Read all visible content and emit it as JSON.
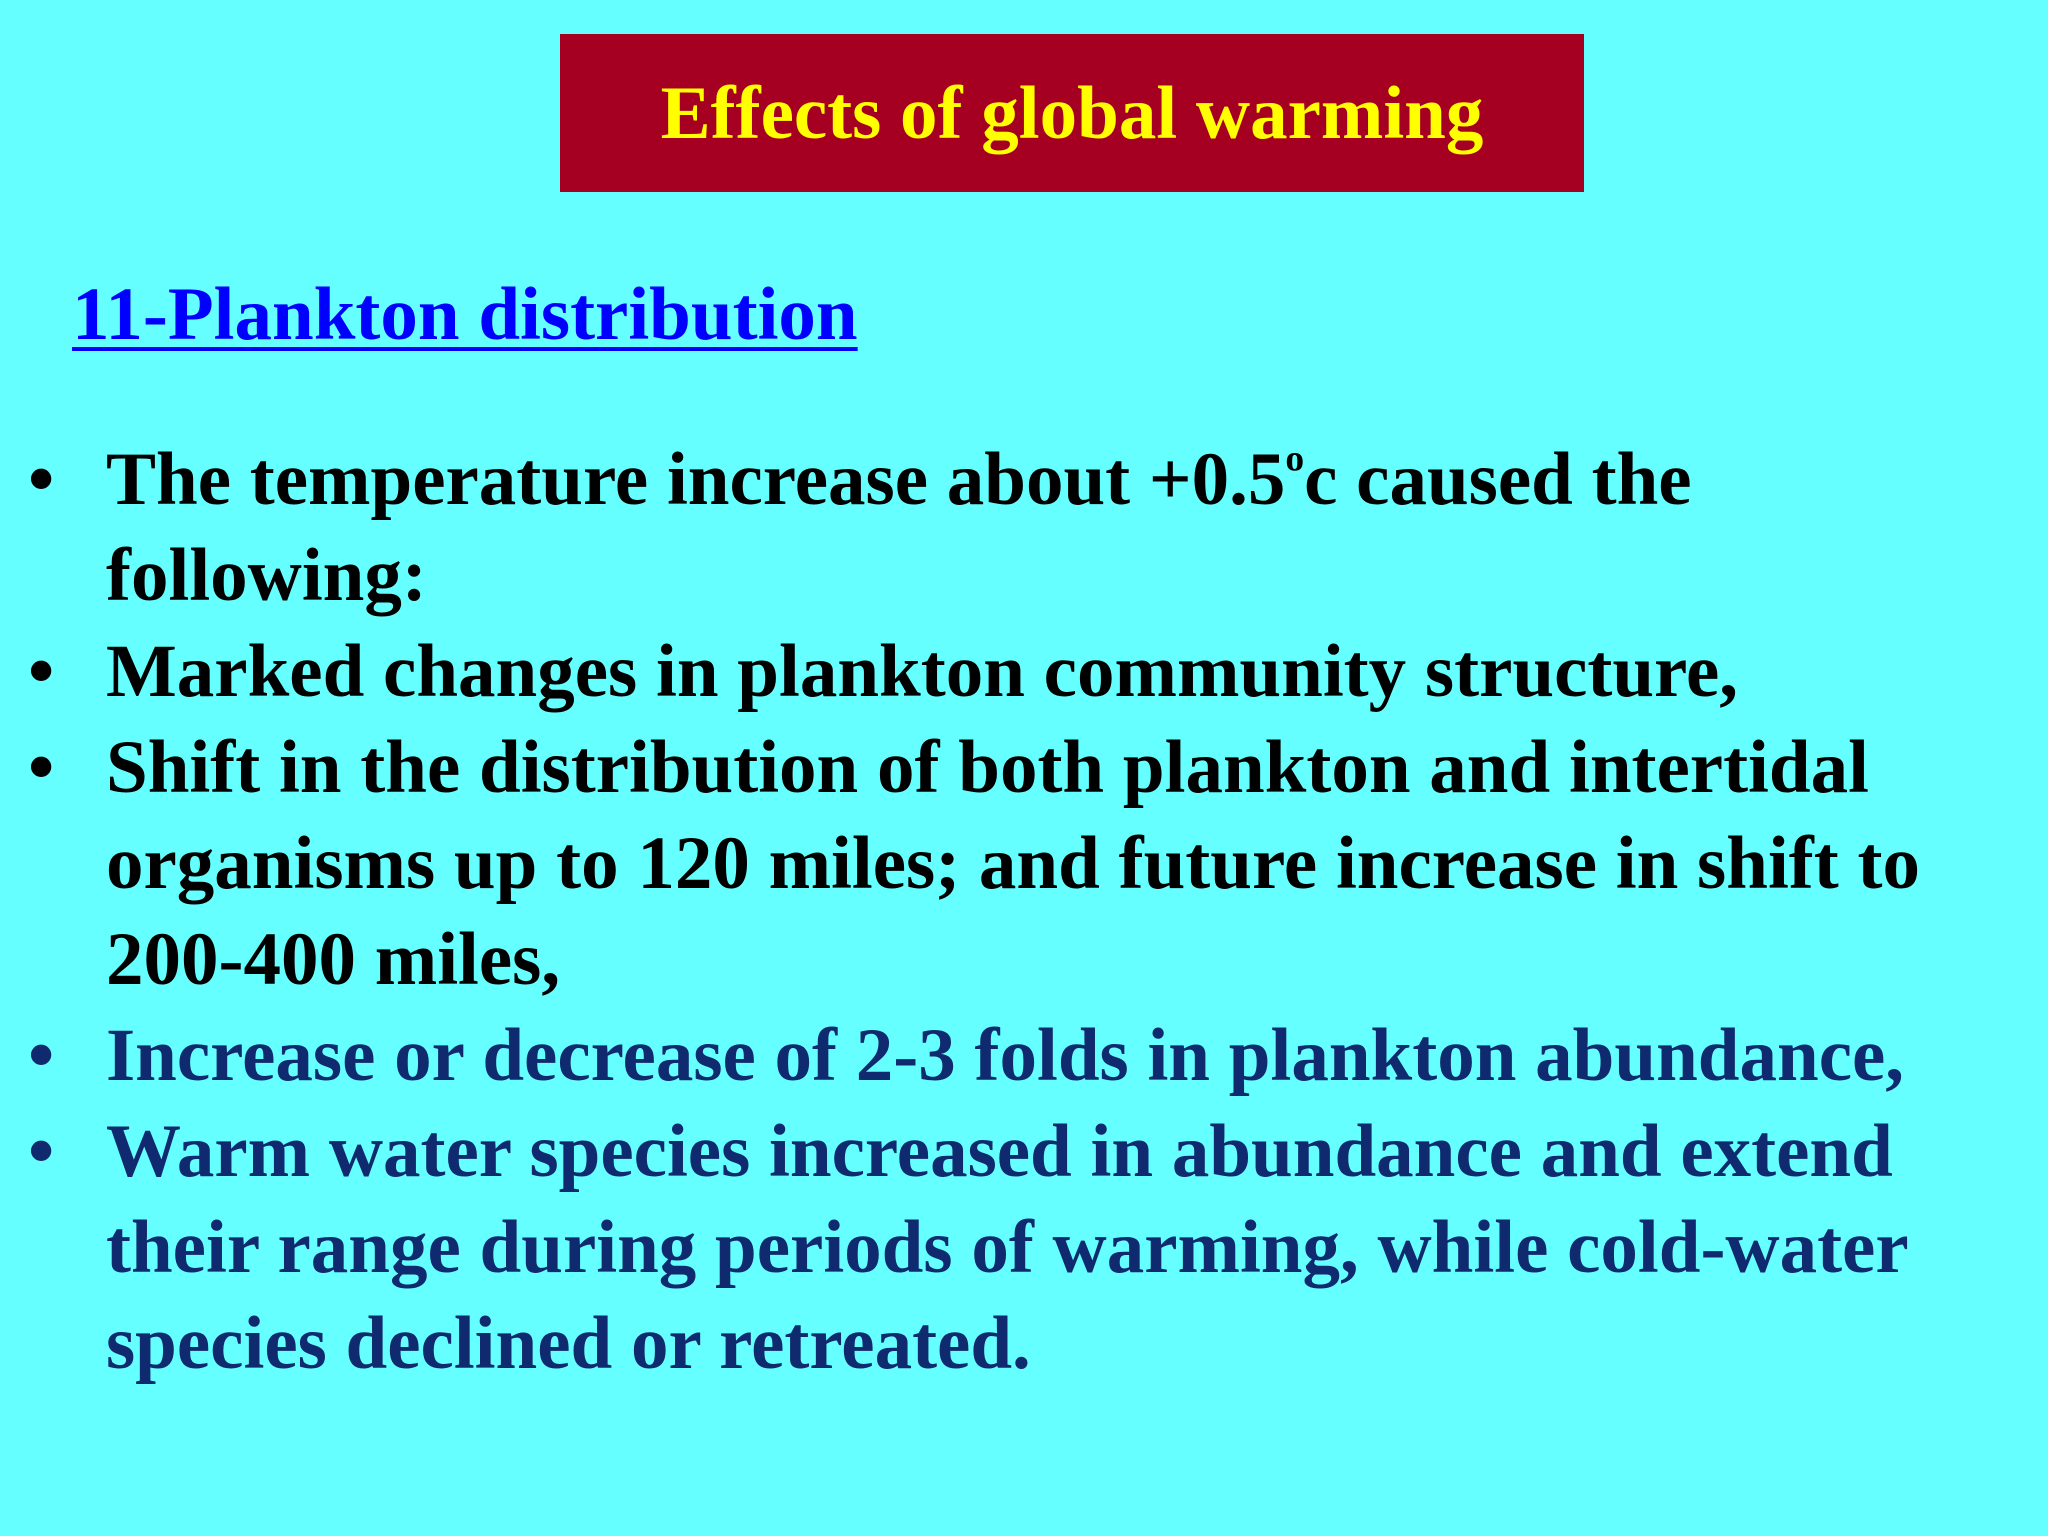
{
  "slide": {
    "title": "Effects of global warming",
    "subtitle": "11-Plankton distribution",
    "bullet_glyph": "•",
    "bullets": [
      {
        "pre": "The temperature increase about +0.5",
        "sup": "o",
        "post": "c caused the following:",
        "color": "#000000"
      },
      {
        "text": "Marked changes in plankton community structure,",
        "color": "#000000"
      },
      {
        "text": "Shift in the distribution of both plankton and intertidal organisms up to 120 miles; and future increase in shift to 200-400 miles,",
        "color": "#000000"
      },
      {
        "text": "Increase or decrease of 2-3 folds in plankton abundance,",
        "color": "#0f2a6e"
      },
      {
        "text": "Warm water species increased in abundance and extend their range during periods of warming, while cold-water species declined or retreated.",
        "color": "#0f2a6e"
      }
    ]
  },
  "colors": {
    "background": "#66ffff",
    "title_box": "#a50021",
    "title_text": "#ffff00",
    "subtitle_text": "#0000ff"
  }
}
